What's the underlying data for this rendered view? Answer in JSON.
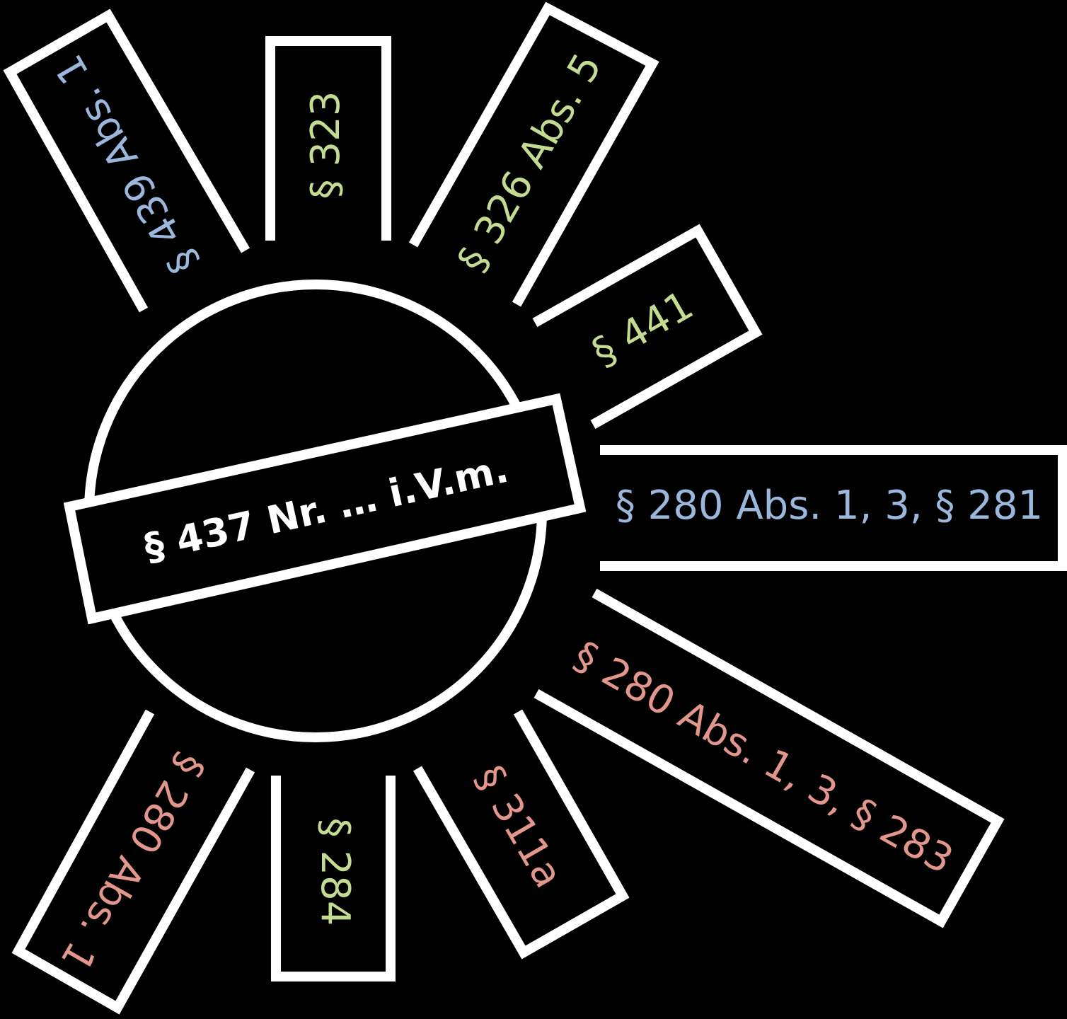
{
  "colors": {
    "background": "#000000",
    "stroke": "#ffffff",
    "hub_text": "#ffffff",
    "green": "#c4dc92",
    "blue": "#9bb8dc",
    "pink": "#e2968c"
  },
  "hub": {
    "label": "§ 437 Nr. … i.V.m."
  },
  "rays": [
    {
      "id": "s439",
      "label": "§ 439 Abs. 1",
      "color": "blue"
    },
    {
      "id": "s323",
      "label": "§ 323",
      "color": "green"
    },
    {
      "id": "s326",
      "label": "§ 326 Abs. 5",
      "color": "green"
    },
    {
      "id": "s441",
      "label": "§ 441",
      "color": "green"
    },
    {
      "id": "s280-281",
      "label": "§ 280 Abs. 1, 3, § 281",
      "color": "blue"
    },
    {
      "id": "s280-283",
      "label": "§ 280 Abs. 1, 3, § 283",
      "color": "pink"
    },
    {
      "id": "s311a",
      "label": "§ 311a",
      "color": "pink"
    },
    {
      "id": "s284",
      "label": "§ 284",
      "color": "green"
    },
    {
      "id": "s280-abs1",
      "label": "§ 280 Abs. 1",
      "color": "pink"
    }
  ]
}
